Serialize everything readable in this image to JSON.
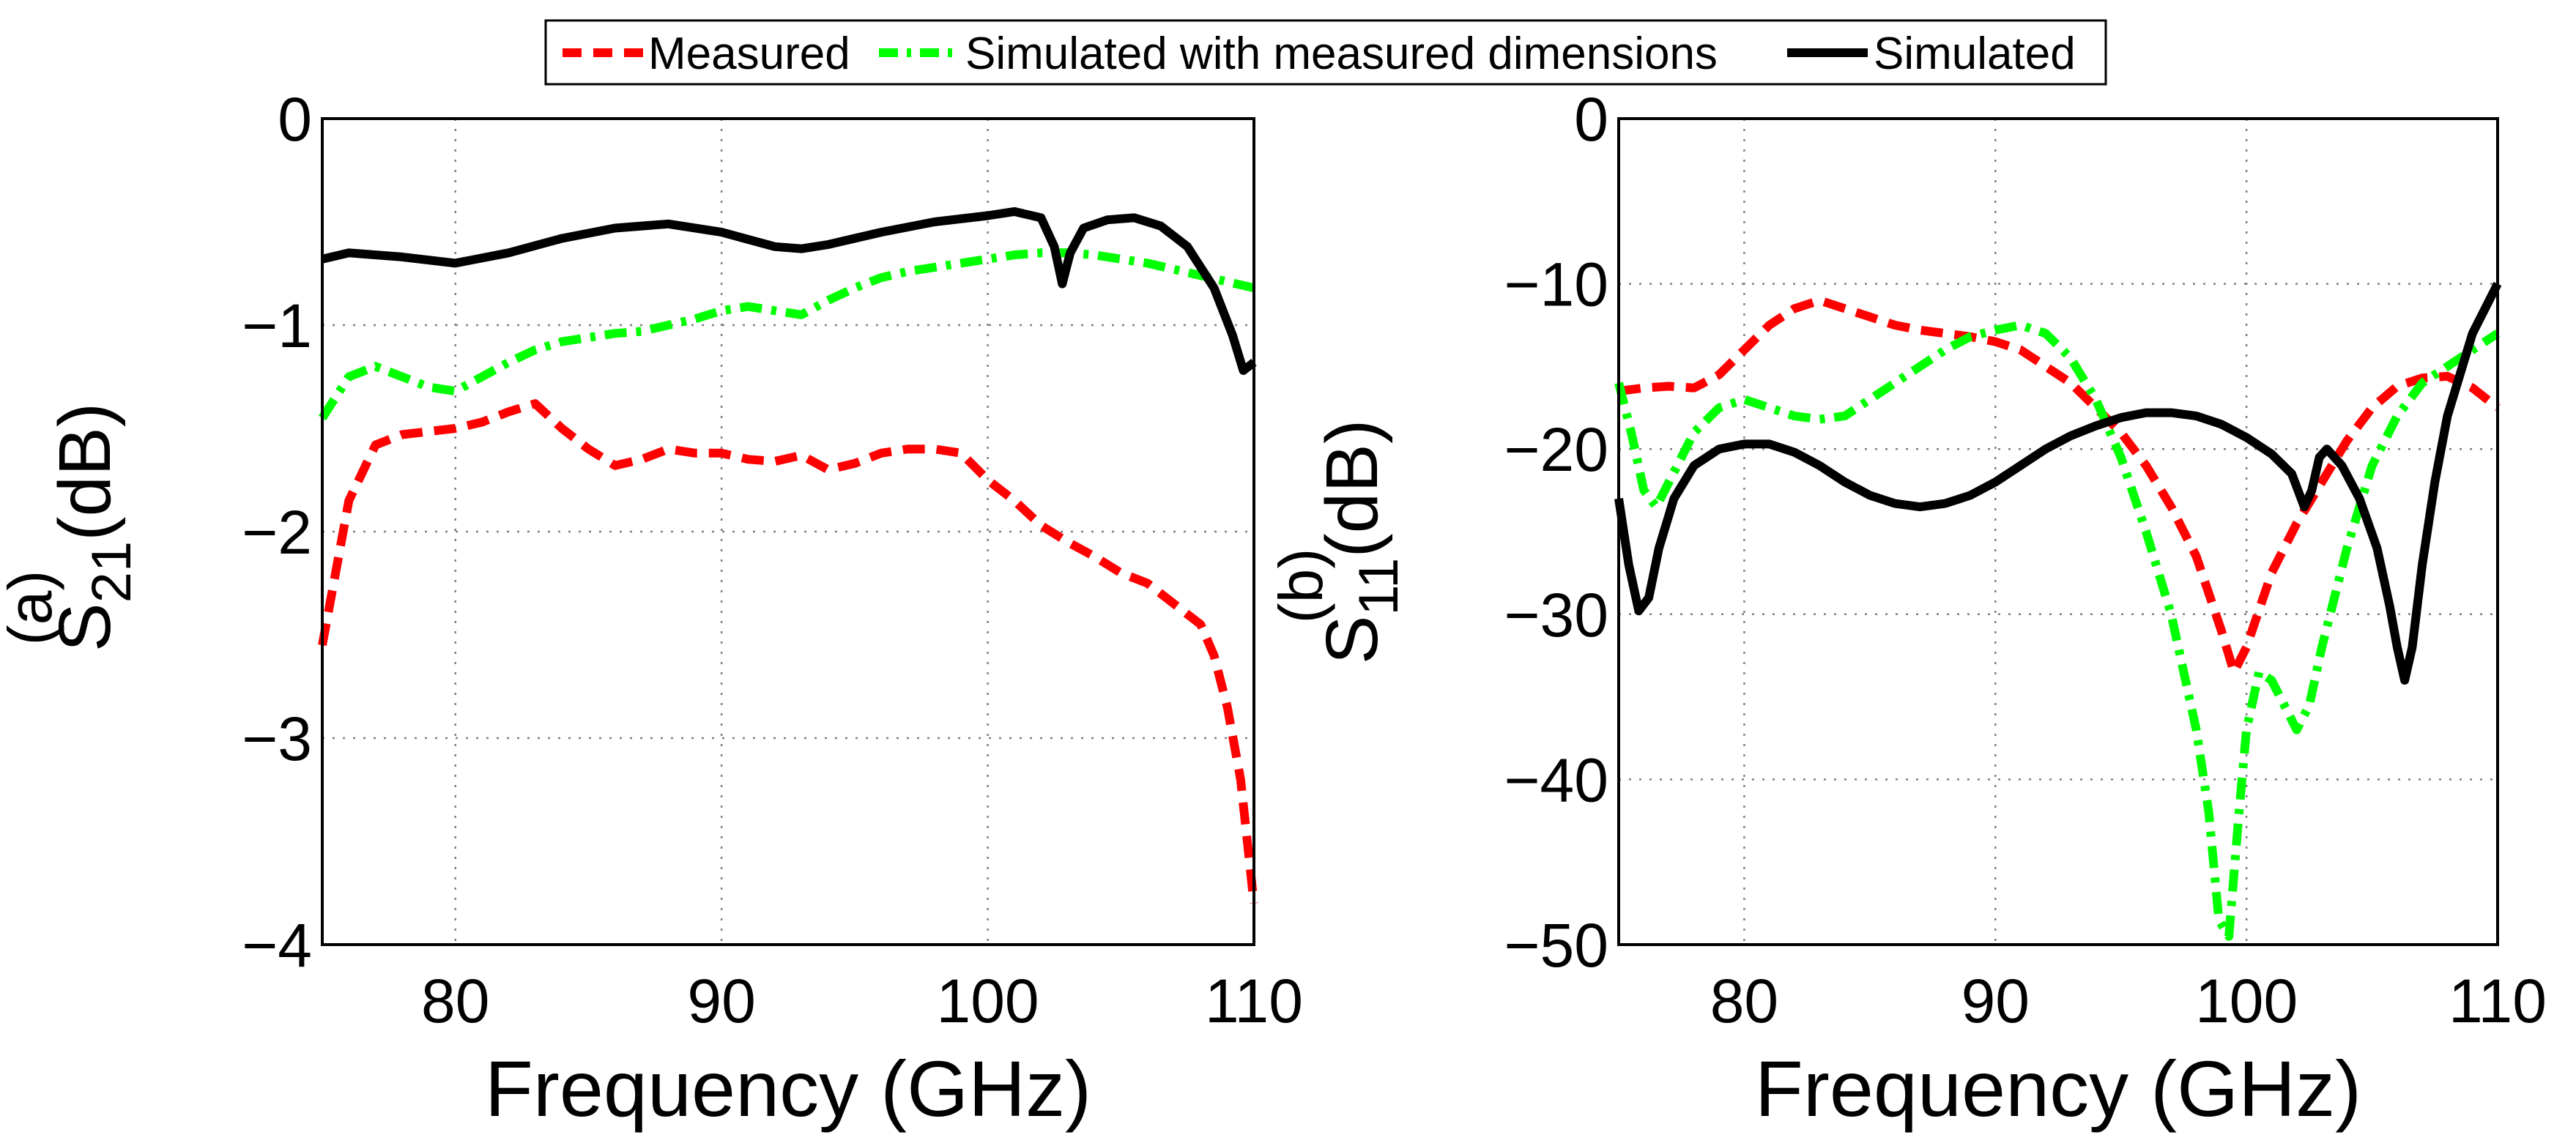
{
  "legend": {
    "entries": [
      {
        "label": "Measured",
        "color": "#ff0000",
        "style": "dashed"
      },
      {
        "label": "Simulated with measured dimensions",
        "color": "#00ff00",
        "style": "dashdot"
      },
      {
        "label": "Simulated",
        "color": "#000000",
        "style": "solid"
      }
    ]
  },
  "chart_data": [
    {
      "type": "line",
      "panel_label": "(a)",
      "xlabel": "Frequency (GHz)",
      "ylabel_main": "S",
      "ylabel_sub": "21",
      "ylabel_unit": "(dB)",
      "xlim": [
        75,
        110
      ],
      "ylim": [
        -4,
        0
      ],
      "xticks": [
        80,
        90,
        100,
        110
      ],
      "yticks": [
        0,
        -1,
        -2,
        -3,
        -4
      ],
      "xtick_labels": [
        "80",
        "90",
        "100",
        "110"
      ],
      "ytick_labels": [
        "0",
        "−1",
        "−2",
        "−3",
        "−4"
      ],
      "grid": true,
      "series": [
        {
          "name": "Measured",
          "color": "#ff0000",
          "style": "dashed",
          "x": [
            75,
            76,
            77,
            78,
            80,
            81,
            82,
            83,
            84,
            85,
            86,
            87,
            88,
            89,
            90,
            91,
            92,
            93,
            94,
            95,
            96,
            97,
            98,
            99,
            100,
            101,
            102,
            103,
            104,
            105,
            106,
            107,
            108,
            108.5,
            109,
            109.5,
            110
          ],
          "y": [
            -2.55,
            -1.85,
            -1.58,
            -1.53,
            -1.5,
            -1.47,
            -1.42,
            -1.38,
            -1.5,
            -1.6,
            -1.68,
            -1.65,
            -1.6,
            -1.62,
            -1.62,
            -1.65,
            -1.66,
            -1.63,
            -1.7,
            -1.67,
            -1.62,
            -1.6,
            -1.6,
            -1.62,
            -1.75,
            -1.85,
            -1.97,
            -2.05,
            -2.12,
            -2.2,
            -2.25,
            -2.35,
            -2.45,
            -2.6,
            -2.85,
            -3.2,
            -3.8
          ]
        },
        {
          "name": "Simulated with measured dimensions",
          "color": "#00ff00",
          "style": "dashdot",
          "x": [
            75,
            76,
            77,
            78,
            79,
            80,
            81,
            82,
            83,
            84,
            85,
            86,
            87,
            88,
            89,
            90,
            91,
            92,
            93,
            94,
            95,
            96,
            97,
            98,
            99,
            100,
            101,
            102,
            103,
            104,
            105,
            106,
            107,
            108,
            109,
            110
          ],
          "y": [
            -1.45,
            -1.25,
            -1.2,
            -1.25,
            -1.3,
            -1.32,
            -1.25,
            -1.18,
            -1.12,
            -1.08,
            -1.06,
            -1.04,
            -1.03,
            -1.0,
            -0.97,
            -0.93,
            -0.91,
            -0.93,
            -0.95,
            -0.88,
            -0.82,
            -0.77,
            -0.74,
            -0.72,
            -0.7,
            -0.68,
            -0.66,
            -0.65,
            -0.65,
            -0.66,
            -0.68,
            -0.7,
            -0.73,
            -0.76,
            -0.79,
            -0.82
          ]
        },
        {
          "name": "Simulated",
          "color": "#000000",
          "style": "solid",
          "x": [
            75,
            76,
            78,
            80,
            82,
            84,
            86,
            88,
            90,
            92,
            93,
            94,
            96,
            98,
            100,
            101,
            102,
            102.5,
            102.8,
            103.1,
            103.6,
            104.5,
            105.5,
            106.5,
            107.5,
            108.5,
            109.2,
            109.6,
            110
          ],
          "y": [
            -0.68,
            -0.65,
            -0.67,
            -0.7,
            -0.65,
            -0.58,
            -0.53,
            -0.51,
            -0.55,
            -0.62,
            -0.63,
            -0.61,
            -0.55,
            -0.5,
            -0.47,
            -0.45,
            -0.48,
            -0.62,
            -0.8,
            -0.65,
            -0.53,
            -0.49,
            -0.48,
            -0.52,
            -0.62,
            -0.82,
            -1.05,
            -1.22,
            -1.18
          ]
        }
      ]
    },
    {
      "type": "line",
      "panel_label": "(b)",
      "xlabel": "Frequency (GHz)",
      "ylabel_main": "S",
      "ylabel_sub": "11",
      "ylabel_unit": "(dB)",
      "xlim": [
        75,
        110
      ],
      "ylim": [
        -50,
        0
      ],
      "xticks": [
        80,
        90,
        100,
        110
      ],
      "yticks": [
        0,
        -10,
        -20,
        -30,
        -40,
        -50
      ],
      "xtick_labels": [
        "80",
        "90",
        "100",
        "110"
      ],
      "ytick_labels": [
        "0",
        "−10",
        "−20",
        "−30",
        "−40",
        "−50"
      ],
      "grid": true,
      "series": [
        {
          "name": "Measured",
          "color": "#ff0000",
          "style": "dashed",
          "x": [
            75,
            76,
            77,
            78,
            79,
            80,
            81,
            82,
            83,
            84,
            85,
            86,
            87,
            88,
            89,
            90,
            91,
            92,
            93,
            94,
            95,
            96,
            97,
            98,
            99,
            99.5,
            100,
            101,
            102,
            103,
            104,
            105,
            106,
            107,
            108,
            109,
            110
          ],
          "y": [
            -16.5,
            -16.3,
            -16.2,
            -16.3,
            -15.5,
            -14,
            -12.5,
            -11.5,
            -11,
            -11.5,
            -12,
            -12.5,
            -12.8,
            -13,
            -13.2,
            -13.5,
            -14,
            -15,
            -16,
            -17.5,
            -19,
            -21,
            -23.5,
            -26.5,
            -31,
            -33.5,
            -32,
            -27.5,
            -24.5,
            -22,
            -19.5,
            -17.5,
            -16.2,
            -15.7,
            -15.6,
            -16.3,
            -17.5
          ]
        },
        {
          "name": "Simulated with measured dimensions",
          "color": "#00ff00",
          "style": "dashdot",
          "x": [
            75,
            75.5,
            76,
            76.5,
            77,
            78,
            79,
            80,
            81,
            82,
            83,
            84,
            85,
            86,
            87,
            88,
            89,
            90,
            91,
            92,
            93,
            94,
            95,
            96,
            97,
            98,
            98.5,
            98.9,
            99.3,
            99.7,
            100,
            100.5,
            101,
            101.5,
            102,
            102.5,
            103,
            104,
            105,
            106,
            107,
            108,
            109,
            110
          ],
          "y": [
            -16,
            -19,
            -22.5,
            -23.5,
            -22,
            -19,
            -17.5,
            -17,
            -17.5,
            -18,
            -18.2,
            -18,
            -17,
            -16,
            -15,
            -14,
            -13.2,
            -12.8,
            -12.5,
            -13,
            -14.5,
            -17,
            -20.5,
            -25,
            -30,
            -37,
            -42,
            -48.5,
            -49.5,
            -42,
            -37,
            -33.5,
            -34,
            -35.5,
            -37,
            -35.5,
            -32,
            -26,
            -21,
            -18,
            -16,
            -15,
            -14,
            -13
          ]
        },
        {
          "name": "Simulated",
          "color": "#000000",
          "style": "solid",
          "x": [
            75,
            75.4,
            75.8,
            76.2,
            76.6,
            77.2,
            78,
            79,
            80,
            81,
            82,
            83,
            84,
            85,
            86,
            87,
            88,
            89,
            90,
            91,
            92,
            93,
            94,
            95,
            96,
            97,
            98,
            99,
            100,
            101,
            101.8,
            102.3,
            102.6,
            102.9,
            103.2,
            103.8,
            104.5,
            105.2,
            105.7,
            106,
            106.3,
            106.6,
            107,
            107.5,
            108,
            109,
            110
          ],
          "y": [
            -23,
            -27,
            -29.8,
            -29,
            -26,
            -23,
            -21,
            -20,
            -19.7,
            -19.7,
            -20.2,
            -21,
            -22,
            -22.8,
            -23.3,
            -23.5,
            -23.3,
            -22.8,
            -22,
            -21,
            -20,
            -19.2,
            -18.6,
            -18.1,
            -17.8,
            -17.8,
            -18,
            -18.5,
            -19.3,
            -20.3,
            -21.5,
            -23.5,
            -22.5,
            -20.5,
            -20,
            -21,
            -23,
            -26,
            -29.5,
            -32,
            -34,
            -32,
            -27,
            -22,
            -18,
            -13,
            -10
          ]
        }
      ]
    }
  ]
}
